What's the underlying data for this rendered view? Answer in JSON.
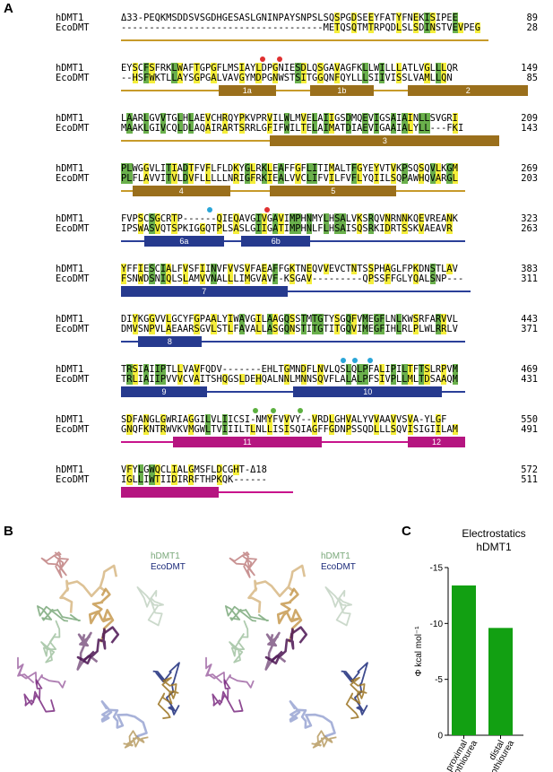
{
  "panel_labels": {
    "a": "A",
    "b": "B",
    "c": "C"
  },
  "alignment": {
    "blocks": [
      {
        "h": "Δ33-PEQKMSDDSVSGDHGESASLGNINPAYSNPSLSQSPGDSEEYFATYFNEKISIPEE",
        "hn": "89",
        "e": "------------------------------------METQSQTMTRPQDLSLSDINSTVEVPEG",
        "en": "28",
        "helices": []
      },
      {
        "h": "EYSCFSFRKLWAFTGPGFLMSIAYLDPGNIESDLQSGAVAGFKLLWILLLATLVGLLLQR",
        "hn": "149",
        "e": "--HSFWKTLLAYSGPGALVAVGYMDPGNWSTSITGGQNFQYLLLSIIVISSLVAMLLQN",
        "en": "85",
        "helices": [
          "1a",
          "1b",
          "2"
        ]
      },
      {
        "h": "LAARLGVVTGLHLAEVCHRQYPKVPRVILWLMVELAIIGSDMQEVIGSAIAINLLSVGRI",
        "hn": "209",
        "e": "MAAKLGIVCQLDLAQAIRARTSRRLGFIFWILTELAIMATDIAEVIGAAIALYLL---FKI",
        "en": "143",
        "helices": [
          "3"
        ]
      },
      {
        "h": "PLWGGVLITIADTFVFLFLDKYGLRKLEAFFGFLITIMALTFGYEYVTVKPSQSQVLKGM",
        "hn": "269",
        "e": "PLFLAVVITVLDVFLLLLLNRIGFRKIEALVVCLIFVILFVFLYQIILSQPAWHQVARGL",
        "en": "203",
        "helices": [
          "4",
          "5"
        ]
      },
      {
        "h": "FVPSCSGCRTP------QIEQAVGIVGAVIMPHNMYLHSALVKSRQVNRNNKQEVREANK",
        "hn": "323",
        "e": "IPSWASVQTSPKIGGQTPLSASLGIIGATIMPHNLFLHSAISQSRKIDRTSSKVAEAVR",
        "en": "263",
        "helices": [
          "6a",
          "6b"
        ]
      },
      {
        "h": "YFFIESCIALFVSFIINVFVVSVFAEAFFGKTNEQVVEVCTNTSSPHAGLFPKDNSTLAV",
        "hn": "383",
        "e": "FSNWDSNIQLSLAMVVNALLLIMGVAVF-KSGAV---------QPSSFFGLYQALSNP---",
        "en": "311",
        "helices": [
          "7"
        ]
      },
      {
        "h": "DIYKGGVVLGCYFGPAALYIWAVGILAAGQSSTMTGTYSGQFVMEGFLNLKWSRFARVVL",
        "hn": "443",
        "e": "DMVSNPVLAEAARSGVLSTLFAVALLASGQNSTITGTITGQVIMEGFIHLRLPLWLRRLV",
        "en": "371",
        "helices": [
          "8"
        ]
      },
      {
        "h": "TRSIAIIPTLLVAVFQDV-------EHLTGMNDFLNVLQSLQLPFALIPILTFTSLRPVM",
        "hn": "469",
        "e": "TRLIAIIPVVVCVAITSHQGSLDEHQALNNLMNNSQVFLALALPFSIVPLLMLTDSAAQM",
        "en": "431",
        "helices": [
          "9",
          "10"
        ]
      },
      {
        "h": "SDFANGLGWRIAGGILVLIICSI-NMYFVVVY--VRDLGHVALYVVAAVVSVA-YLGF",
        "hn": "550",
        "e": "GNQFKNTRWVKVMGWLTVIIILTLNLLISISQIAGFFGDNPSSQDLLLSQVISIGIILAM",
        "en": "491",
        "helices": [
          "11",
          "12"
        ]
      },
      {
        "h": "VFYLGWQCLIALGMSFLDCGHT-Δ18",
        "hn": "572",
        "e": "IGLLIWTIIDIRRFTHPKQK------",
        "en": "511",
        "helices": []
      }
    ],
    "names": {
      "human": "hDMT1",
      "eco": "EcoDMT"
    }
  },
  "panel_b": {
    "legend_h": "hDMT1",
    "legend_e": "EcoDMT",
    "colors": {
      "h": "#7aa87a",
      "e": "#1b2a7a",
      "purple": "#4b1452",
      "gold": "#9a7220",
      "blue": "#6e7ec0"
    }
  },
  "chart_data": {
    "type": "bar",
    "title": "Electrostatics\nhDMT1",
    "title_lines": [
      "Electrostatics",
      "hDMT1"
    ],
    "categories": [
      "proximal isothiourea",
      "distal isothiourea"
    ],
    "category_lines": [
      [
        "proximal",
        "isothiourea"
      ],
      [
        "distal",
        "isothiourea"
      ]
    ],
    "values": [
      -13.4,
      -9.6
    ],
    "ylabel": "Φ kcal mol⁻¹",
    "ylim": [
      0,
      -15
    ],
    "yticks": [
      "-15",
      "-10",
      "-5",
      "0"
    ],
    "ytick_values": [
      -15,
      -10,
      -5,
      0
    ],
    "bar_color": "#12a012",
    "grid": false,
    "legend": "none"
  }
}
